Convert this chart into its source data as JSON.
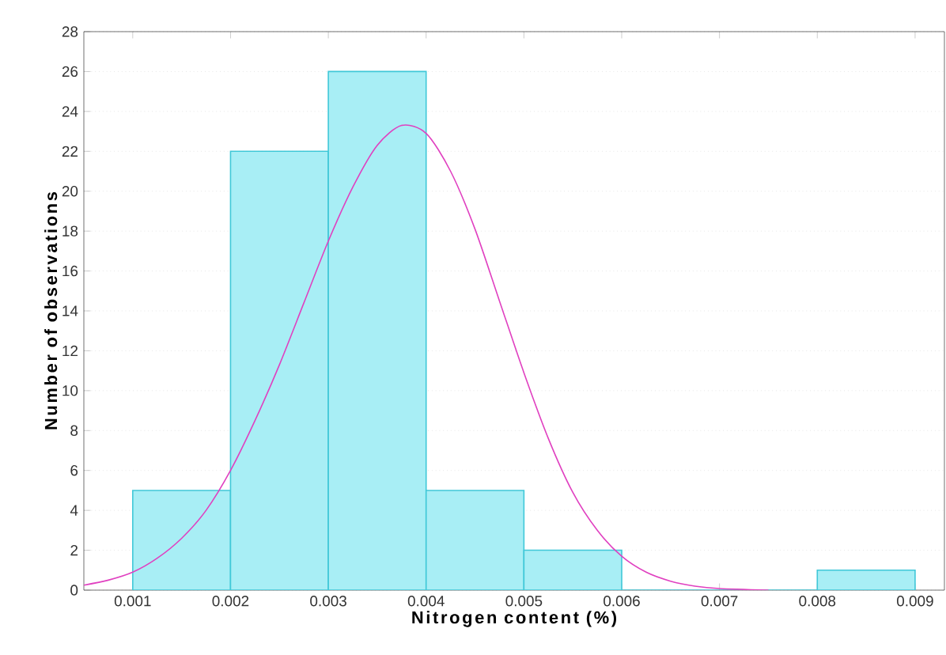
{
  "chart_data": {
    "type": "histogram",
    "xlabel": "Nitrogen content  (%)",
    "ylabel": "Number of observations",
    "xlim": [
      0.0005,
      0.0093
    ],
    "xticks": [
      0.001,
      0.002,
      0.003,
      0.004,
      0.005,
      0.006,
      0.007,
      0.008,
      0.009
    ],
    "ylim": [
      0,
      28
    ],
    "yticks": [
      0,
      2,
      4,
      6,
      8,
      10,
      12,
      14,
      16,
      18,
      20,
      22,
      24,
      26,
      28
    ],
    "grid": "y",
    "color": "#a8eef5",
    "bins": [
      0.001,
      0.002,
      0.003,
      0.004,
      0.005,
      0.006,
      0.007,
      0.008,
      0.009
    ],
    "values": [
      5,
      22,
      26,
      5,
      2,
      0,
      0,
      1
    ],
    "series": [
      {
        "type": "line",
        "color": "#e040c0",
        "x": [
          0.0005,
          0.00075,
          0.001,
          0.00125,
          0.0015,
          0.00175,
          0.002,
          0.00225,
          0.0025,
          0.00275,
          0.003,
          0.00325,
          0.0035,
          0.00375,
          0.004,
          0.00425,
          0.0045,
          0.00475,
          0.005,
          0.00525,
          0.0055,
          0.00575,
          0.006,
          0.00625,
          0.0065,
          0.00675,
          0.007,
          0.0075
        ],
        "values": [
          0.25,
          0.5,
          0.9,
          1.6,
          2.6,
          4.0,
          6.0,
          8.5,
          11.3,
          14.4,
          17.5,
          20.2,
          22.3,
          23.3,
          22.9,
          21.0,
          18.1,
          14.5,
          10.9,
          7.6,
          4.9,
          3.0,
          1.7,
          0.9,
          0.45,
          0.2,
          0.08,
          0
        ]
      }
    ]
  }
}
